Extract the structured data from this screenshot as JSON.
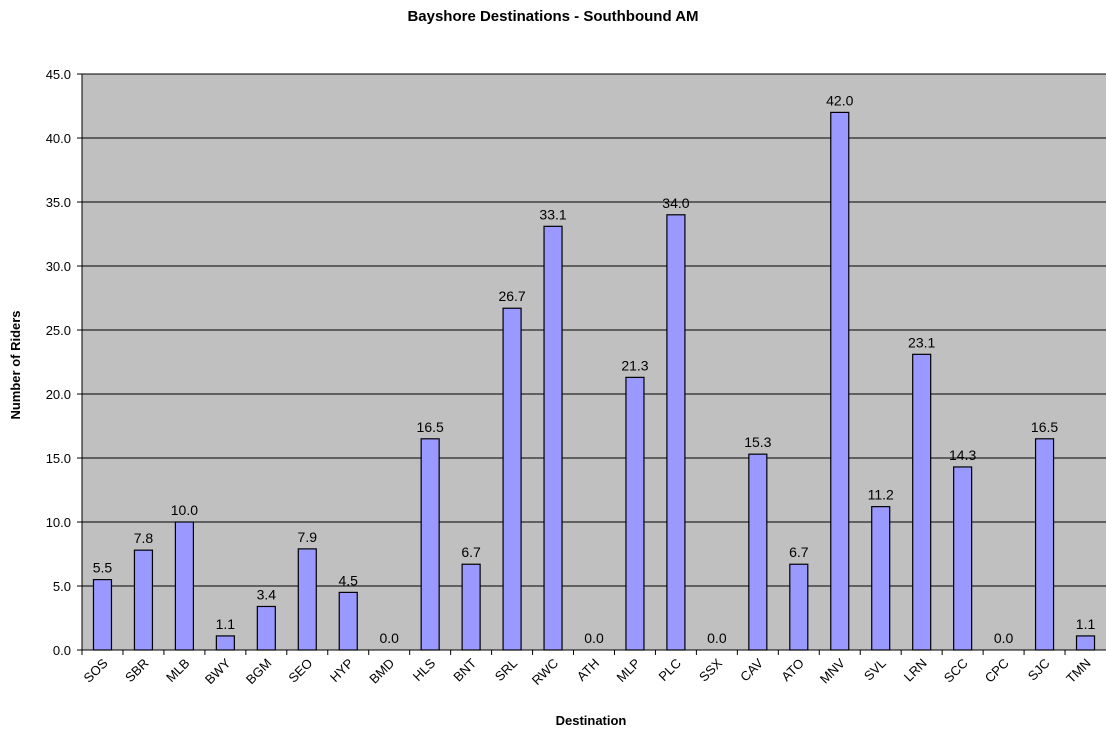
{
  "chart_data": {
    "type": "bar",
    "title": "Bayshore Destinations - Southbound AM",
    "xlabel": "Destination",
    "ylabel": "Number of Riders",
    "categories": [
      "SOS",
      "SBR",
      "MLB",
      "BWY",
      "BGM",
      "SEO",
      "HYP",
      "BMD",
      "HLS",
      "BNT",
      "SRL",
      "RWC",
      "ATH",
      "MLP",
      "PLC",
      "SSX",
      "CAV",
      "ATO",
      "MNV",
      "SVL",
      "LRN",
      "SCC",
      "CPC",
      "SJC",
      "TMN"
    ],
    "values": [
      5.5,
      7.8,
      10.0,
      1.1,
      3.4,
      7.9,
      4.5,
      0.0,
      16.5,
      6.7,
      26.7,
      33.1,
      0.0,
      21.3,
      34.0,
      0.0,
      15.3,
      6.7,
      42.0,
      11.2,
      23.1,
      14.3,
      0.0,
      16.5,
      1.1
    ],
    "data_labels": [
      "5.5",
      "7.8",
      "10.0",
      "1.1",
      "3.4",
      "7.9",
      "4.5",
      "0.0",
      "16.5",
      "6.7",
      "26.7",
      "33.1",
      "0.0",
      "21.3",
      "34.0",
      "0.0",
      "15.3",
      "6.7",
      "42.0",
      "11.2",
      "23.1",
      "14.3",
      "0.0",
      "16.5",
      "1.1"
    ],
    "ylim": [
      0,
      45
    ],
    "yticks": [
      0,
      5,
      10,
      15,
      20,
      25,
      30,
      35,
      40,
      45
    ],
    "ytick_labels": [
      "0.0",
      "5.0",
      "10.0",
      "15.0",
      "20.0",
      "25.0",
      "30.0",
      "35.0",
      "40.0",
      "45.0"
    ],
    "grid": true,
    "legend": "none",
    "colors": {
      "bar_fill": "#9999ff",
      "plot_background": "#c0c0c0",
      "gridline": "#000000"
    }
  }
}
